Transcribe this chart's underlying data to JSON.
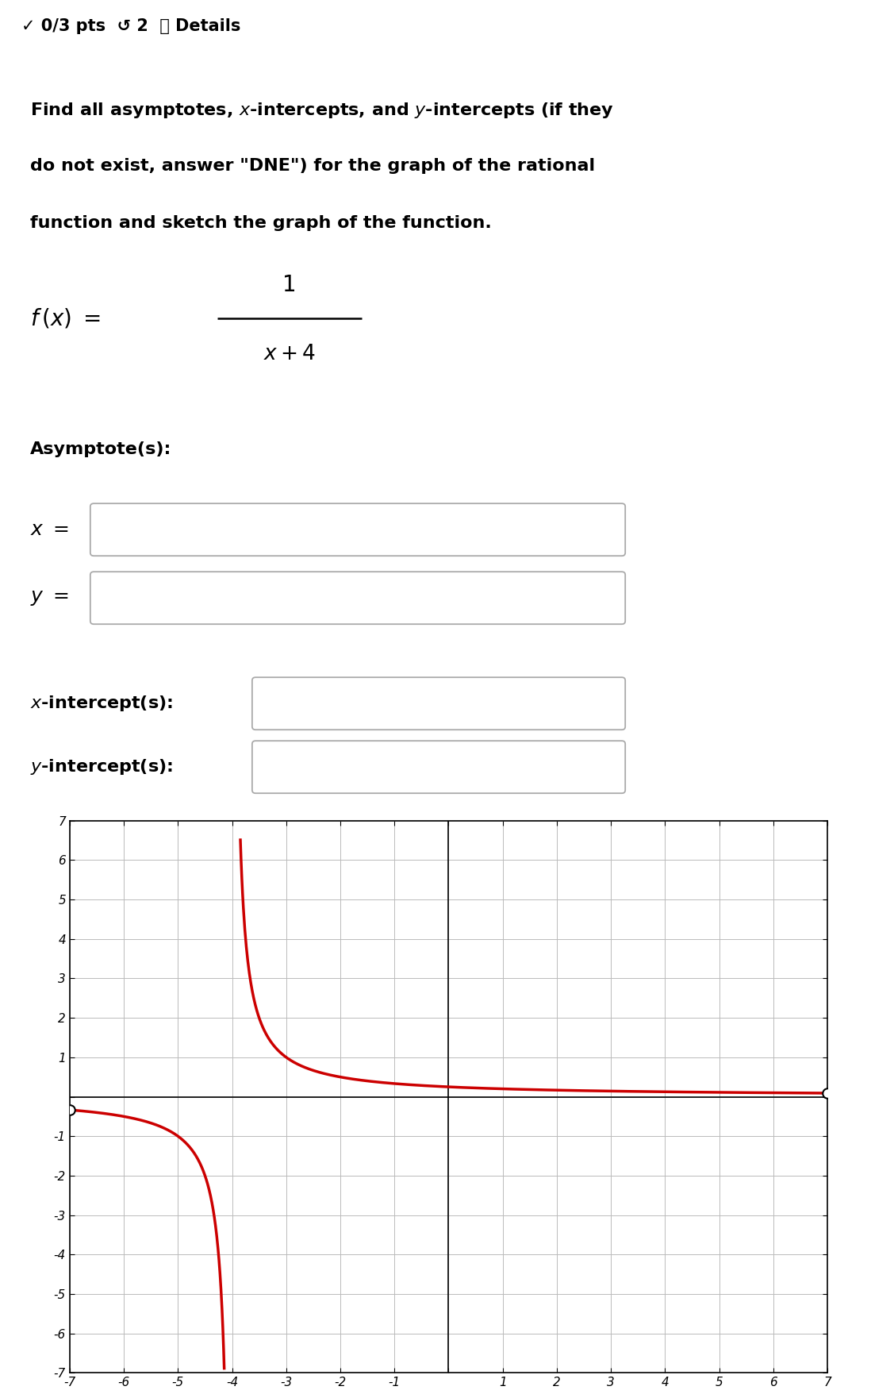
{
  "header_text": "✓ 0/3 pts  ↺ 2  ⓘ Details",
  "problem_line1": "Find all asymptotes, $x$-intercepts, and $y$-intercepts (if they",
  "problem_line2": "do not exist, answer \"DNE\") for the graph of the rational",
  "problem_line3": "function and sketch the graph of the function.",
  "curve_color": "#cc0000",
  "graph_xlim": [
    -7,
    7
  ],
  "graph_ylim": [
    -7,
    7
  ],
  "background_color": "#ffffff",
  "header_bg_color": "#f5f5f5",
  "grid_color": "#bbbbbb",
  "box_edge_color": "#aaaaaa",
  "text_color": "#000000",
  "header_line_color": "#cccccc",
  "right_border_color": "#cccccc"
}
